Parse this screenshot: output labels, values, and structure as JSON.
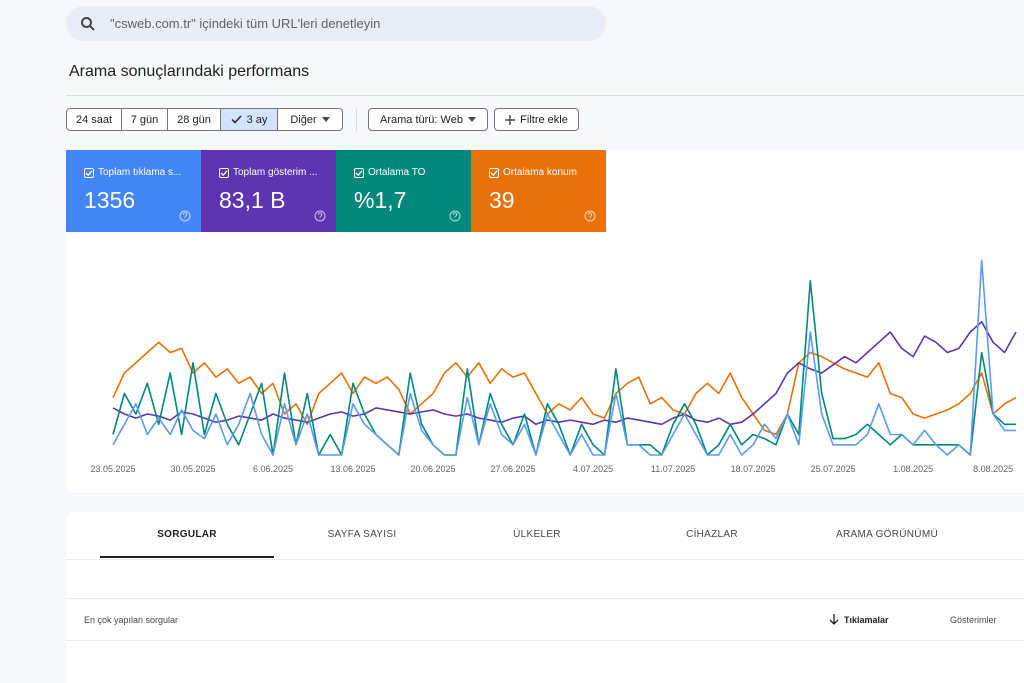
{
  "search": {
    "placeholder": "\"csweb.com.tr\" içindeki tüm URL'leri denetleyin"
  },
  "title": "Arama sonuçlarındaki performans",
  "filters": {
    "dates": [
      "24 saat",
      "7 gün",
      "28 gün",
      "3 ay",
      "Diğer"
    ],
    "selected": 3,
    "search_type": "Arama türü: Web",
    "add_filter": "Filtre ekle"
  },
  "cards": [
    {
      "label": "Toplam tıklama s...",
      "value": "1356",
      "color": "#4285f4"
    },
    {
      "label": "Toplam gösterim ...",
      "value": "83,1 B",
      "color": "#5e35b1"
    },
    {
      "label": "Ortalama TO",
      "value": "%1,7",
      "color": "#00897b"
    },
    {
      "label": "Ortalama konum",
      "value": "39",
      "color": "#e8710a"
    }
  ],
  "chart_data": {
    "type": "line",
    "ylim": [
      0,
      100
    ],
    "categories": [
      "23.05.2025",
      null,
      null,
      null,
      null,
      null,
      null,
      "30.05.2025",
      null,
      null,
      null,
      null,
      null,
      null,
      "6.06.2025",
      null,
      null,
      null,
      null,
      null,
      null,
      "13.06.2025",
      null,
      null,
      null,
      null,
      null,
      null,
      "20.06.2025",
      null,
      null,
      null,
      null,
      null,
      null,
      "27.06.2025",
      null,
      null,
      null,
      null,
      null,
      null,
      "4.07.2025",
      null,
      null,
      null,
      null,
      null,
      null,
      "11.07.2025",
      null,
      null,
      null,
      null,
      null,
      null,
      "18.07.2025",
      null,
      null,
      null,
      null,
      null,
      null,
      "25.07.2025",
      null,
      null,
      null,
      null,
      null,
      null,
      "1.08.2025",
      null,
      null,
      null,
      null,
      null,
      null,
      "8.08.2025",
      null,
      null
    ],
    "series": [
      {
        "color": "#e8710a",
        "values": [
          28,
          40,
          45,
          50,
          55,
          50,
          52,
          40,
          45,
          38,
          42,
          35,
          38,
          30,
          35,
          20,
          25,
          15,
          30,
          35,
          40,
          30,
          38,
          35,
          38,
          32,
          20,
          25,
          30,
          40,
          45,
          38,
          45,
          35,
          42,
          38,
          40,
          30,
          20,
          25,
          22,
          28,
          20,
          18,
          30,
          35,
          38,
          25,
          28,
          22,
          20,
          30,
          35,
          30,
          40,
          28,
          20,
          12,
          10,
          20,
          45,
          50,
          48,
          45,
          42,
          40,
          38,
          45,
          30,
          28,
          20,
          18,
          20,
          22,
          25,
          30,
          40,
          20,
          25,
          28
        ]
      },
      {
        "color": "#5e35b1",
        "values": [
          23,
          20,
          18,
          20,
          19,
          17,
          21,
          20,
          18,
          16,
          17,
          19,
          18,
          17,
          20,
          18,
          17,
          16,
          18,
          20,
          21,
          19,
          20,
          23,
          22,
          21,
          20,
          21,
          22,
          20,
          19,
          20,
          18,
          17,
          16,
          18,
          19,
          15,
          17,
          16,
          17,
          16,
          15,
          17,
          16,
          18,
          17,
          16,
          15,
          18,
          20,
          17,
          16,
          18,
          15,
          16,
          20,
          25,
          30,
          40,
          45,
          42,
          40,
          44,
          48,
          45,
          50,
          55,
          60,
          52,
          48,
          58,
          55,
          50,
          52,
          60,
          65,
          55,
          50,
          60
        ]
      },
      {
        "color": "#00897b",
        "values": [
          10,
          30,
          20,
          35,
          15,
          40,
          10,
          45,
          10,
          30,
          15,
          5,
          20,
          35,
          0,
          40,
          5,
          30,
          0,
          10,
          0,
          35,
          20,
          10,
          5,
          0,
          40,
          15,
          5,
          0,
          0,
          42,
          5,
          30,
          15,
          5,
          20,
          0,
          25,
          15,
          0,
          15,
          5,
          0,
          42,
          5,
          5,
          5,
          0,
          15,
          25,
          15,
          0,
          5,
          15,
          5,
          10,
          8,
          5,
          20,
          10,
          85,
          30,
          8,
          8,
          10,
          15,
          10,
          5,
          10,
          5,
          5,
          5,
          5,
          5,
          0,
          50,
          20,
          15,
          15
        ]
      },
      {
        "color": "#5b9bf0",
        "values": [
          5,
          15,
          25,
          10,
          18,
          10,
          22,
          12,
          8,
          20,
          5,
          15,
          30,
          10,
          0,
          25,
          5,
          20,
          0,
          0,
          0,
          25,
          15,
          10,
          5,
          0,
          30,
          12,
          5,
          0,
          0,
          28,
          5,
          25,
          10,
          5,
          15,
          0,
          20,
          10,
          0,
          10,
          0,
          0,
          30,
          5,
          5,
          0,
          0,
          10,
          20,
          10,
          0,
          0,
          10,
          0,
          5,
          15,
          8,
          20,
          5,
          60,
          20,
          5,
          5,
          5,
          10,
          25,
          10,
          10,
          5,
          12,
          5,
          0,
          5,
          0,
          95,
          20,
          12,
          12
        ]
      }
    ]
  },
  "tabs": {
    "items": [
      "SORGULAR",
      "SAYFA SAYISI",
      "ÜLKELER",
      "CİHAZLAR",
      "ARAMA GÖRÜNÜMÜ"
    ],
    "selected": 0
  },
  "table": {
    "headers": [
      "En çok yapılan sorgular",
      "Tıklamalar",
      "Gösterimler"
    ]
  }
}
